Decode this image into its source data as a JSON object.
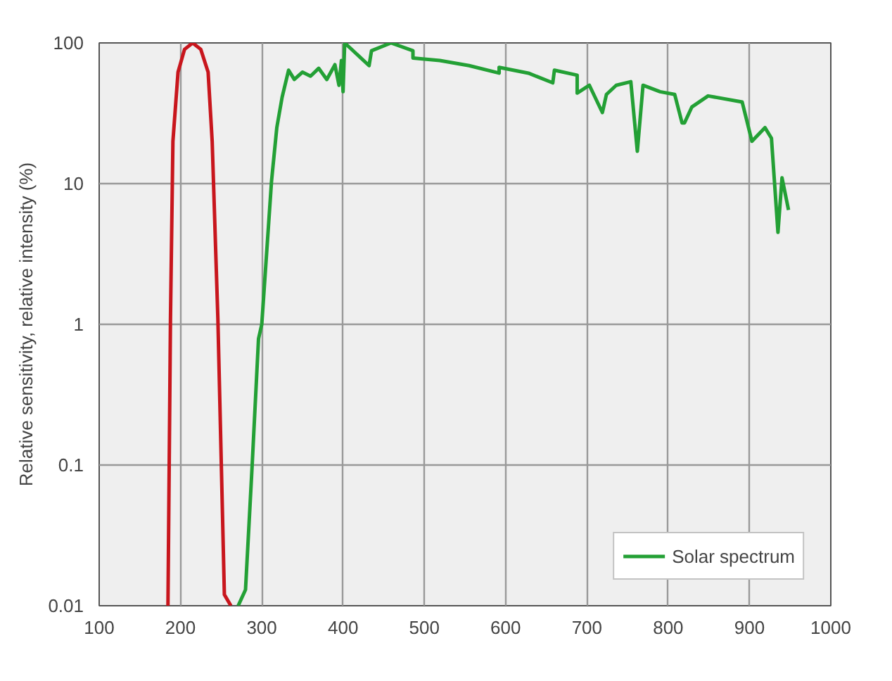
{
  "chart_data": {
    "type": "line",
    "ylabel": "Relative sensitivity, relative intensity (%)",
    "xlim": [
      100,
      1000
    ],
    "xticks": [
      100,
      200,
      300,
      400,
      500,
      600,
      700,
      800,
      900,
      1000
    ],
    "ylim": [
      0.01,
      100
    ],
    "yticks": [
      0.01,
      0.1,
      1,
      10,
      100
    ],
    "log": "y",
    "grid": true,
    "legend": "bottom right",
    "series": [
      {
        "color": "#c8161d",
        "x": [
          184.6,
          187.7,
          190.7,
          197,
          205,
          215,
          225,
          234,
          239,
          246,
          254,
          262
        ],
        "values": [
          0.01,
          1.1,
          20,
          62,
          90,
          100,
          90,
          62,
          20,
          1.1,
          0.012,
          0.01
        ]
      },
      {
        "name": "Solar spectrum",
        "color": "#23a035",
        "x": [
          271,
          280,
          288,
          296,
          300,
          312,
          318.5,
          325,
          333,
          340,
          350,
          360,
          370,
          380,
          390,
          395,
          398,
          400,
          402,
          432,
          435,
          459,
          486,
          486,
          519,
          555,
          592,
          592,
          628,
          658,
          660,
          688,
          688,
          703,
          719,
          724,
          736,
          754,
          762,
          769,
          790,
          808,
          817,
          820,
          829,
          849,
          891,
          903,
          919,
          927,
          935,
          940,
          948
        ],
        "values": [
          0.01,
          0.013,
          0.095,
          0.79,
          1,
          10.4,
          25,
          41,
          64,
          55,
          62,
          58,
          66,
          55,
          70,
          50,
          75,
          45,
          100,
          69,
          88,
          100,
          88,
          78,
          75,
          69,
          61,
          67,
          61,
          52,
          64,
          59,
          44,
          50,
          32,
          43,
          50,
          53,
          17,
          50,
          45,
          43,
          27,
          27,
          35,
          42,
          38,
          20,
          25,
          21,
          4.5,
          11,
          6.5
        ]
      }
    ]
  }
}
